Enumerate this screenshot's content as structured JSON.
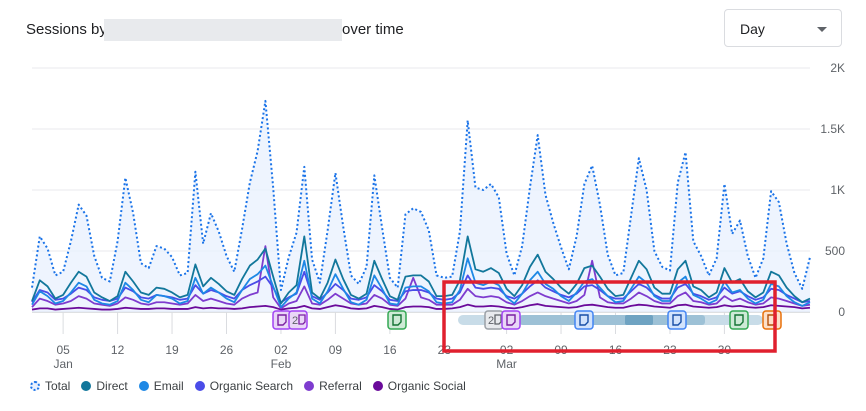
{
  "header": {
    "title_prefix": "Sessions by",
    "title_suffix": "over time",
    "period_select": {
      "value": "Day"
    }
  },
  "colors": {
    "total": "#1a73e8",
    "direct": "#12779b",
    "email": "#1e88e5",
    "organic_search": "#4a4ce8",
    "referral": "#7e3ccf",
    "organic_social": "#6a0a9a",
    "highlight_box": "#e0202e"
  },
  "annotations": [
    {
      "label": "",
      "icon": "note-icon",
      "color": "purple"
    },
    {
      "label": "2",
      "icon": "note-icon",
      "color": "purple"
    },
    {
      "label": "",
      "icon": "note-icon",
      "color": "green"
    },
    {
      "label": "2",
      "icon": "note-icon",
      "color": "gray"
    },
    {
      "label": "",
      "icon": "note-icon",
      "color": "purple"
    },
    {
      "label": "",
      "icon": "note-icon",
      "color": "blue"
    },
    {
      "label": "",
      "icon": "note-icon",
      "color": "blue"
    },
    {
      "label": "",
      "icon": "note-icon",
      "color": "green"
    },
    {
      "label": "",
      "icon": "note-icon",
      "color": "orange"
    }
  ],
  "chart_data": {
    "type": "line",
    "title": "",
    "x_start": "2024-01-01",
    "x_ticks": [
      {
        "label": "05",
        "sublabel": "Jan",
        "date": "2024-01-05"
      },
      {
        "label": "12",
        "sublabel": "",
        "date": "2024-01-12"
      },
      {
        "label": "19",
        "sublabel": "",
        "date": "2024-01-19"
      },
      {
        "label": "26",
        "sublabel": "",
        "date": "2024-01-26"
      },
      {
        "label": "02",
        "sublabel": "Feb",
        "date": "2024-02-02"
      },
      {
        "label": "09",
        "sublabel": "",
        "date": "2024-02-09"
      },
      {
        "label": "16",
        "sublabel": "",
        "date": "2024-02-16"
      },
      {
        "label": "23",
        "sublabel": "",
        "date": "2024-02-23"
      },
      {
        "label": "02",
        "sublabel": "Mar",
        "date": "2024-03-02"
      },
      {
        "label": "09",
        "sublabel": "",
        "date": "2024-03-09"
      },
      {
        "label": "16",
        "sublabel": "",
        "date": "2024-03-16"
      },
      {
        "label": "23",
        "sublabel": "",
        "date": "2024-03-23"
      },
      {
        "label": "30",
        "sublabel": "",
        "date": "2024-03-30"
      }
    ],
    "y_ticks": [
      "0",
      "500",
      "1K",
      "1.5K",
      "2K"
    ],
    "ylim": [
      0,
      2000
    ],
    "legend_position": "bottom-left",
    "series": [
      {
        "name": "Total",
        "style": "dotted-area",
        "values": [
          200,
          620,
          520,
          300,
          330,
          580,
          880,
          790,
          460,
          280,
          250,
          580,
          1100,
          810,
          400,
          360,
          540,
          520,
          450,
          300,
          320,
          1150,
          560,
          810,
          660,
          460,
          330,
          680,
          1060,
          1320,
          1730,
          1020,
          180,
          450,
          650,
          1190,
          430,
          240,
          670,
          1140,
          700,
          300,
          230,
          370,
          1120,
          690,
          280,
          200,
          800,
          850,
          820,
          670,
          300,
          280,
          290,
          660,
          1570,
          1020,
          1000,
          1050,
          940,
          480,
          300,
          540,
          1020,
          1450,
          960,
          730,
          530,
          350,
          620,
          1050,
          1200,
          880,
          470,
          300,
          320,
          790,
          1260,
          1000,
          500,
          370,
          340,
          1060,
          1310,
          580,
          460,
          300,
          440,
          1050,
          640,
          750,
          460,
          280,
          440,
          990,
          900,
          560,
          320,
          190,
          450
        ]
      },
      {
        "name": "Direct",
        "style": "line",
        "values": [
          90,
          260,
          210,
          110,
          140,
          240,
          330,
          290,
          160,
          120,
          90,
          130,
          330,
          250,
          160,
          140,
          200,
          190,
          160,
          120,
          140,
          390,
          210,
          280,
          230,
          170,
          140,
          270,
          380,
          430,
          520,
          290,
          70,
          160,
          220,
          620,
          160,
          110,
          240,
          430,
          270,
          140,
          110,
          150,
          420,
          270,
          130,
          100,
          290,
          300,
          300,
          250,
          130,
          130,
          140,
          260,
          620,
          350,
          330,
          360,
          320,
          190,
          130,
          220,
          370,
          470,
          330,
          270,
          200,
          150,
          230,
          360,
          380,
          290,
          190,
          130,
          140,
          280,
          420,
          350,
          200,
          150,
          150,
          350,
          420,
          210,
          180,
          120,
          160,
          360,
          240,
          270,
          170,
          120,
          160,
          330,
          300,
          200,
          130,
          80,
          110
        ]
      },
      {
        "name": "Email",
        "style": "line",
        "values": [
          60,
          170,
          130,
          70,
          90,
          160,
          240,
          210,
          100,
          70,
          60,
          90,
          240,
          180,
          100,
          80,
          140,
          130,
          110,
          70,
          90,
          280,
          150,
          200,
          160,
          110,
          80,
          180,
          270,
          310,
          380,
          210,
          40,
          110,
          160,
          420,
          110,
          70,
          170,
          310,
          190,
          80,
          60,
          100,
          300,
          190,
          70,
          60,
          200,
          210,
          210,
          170,
          80,
          70,
          80,
          180,
          440,
          240,
          220,
          250,
          220,
          120,
          70,
          150,
          260,
          330,
          230,
          190,
          130,
          90,
          160,
          250,
          270,
          200,
          130,
          80,
          90,
          190,
          290,
          240,
          130,
          90,
          90,
          240,
          290,
          140,
          110,
          70,
          100,
          250,
          160,
          180,
          110,
          70,
          100,
          230,
          210,
          130,
          80,
          50,
          80
        ]
      },
      {
        "name": "Organic Search",
        "style": "line",
        "values": [
          80,
          180,
          160,
          100,
          110,
          150,
          200,
          180,
          120,
          100,
          90,
          110,
          200,
          170,
          120,
          110,
          140,
          130,
          120,
          100,
          110,
          220,
          150,
          180,
          160,
          130,
          110,
          180,
          220,
          250,
          290,
          200,
          80,
          120,
          150,
          330,
          130,
          100,
          160,
          230,
          180,
          110,
          100,
          120,
          220,
          170,
          100,
          90,
          170,
          180,
          180,
          160,
          110,
          100,
          110,
          160,
          300,
          200,
          190,
          200,
          190,
          130,
          110,
          150,
          210,
          260,
          200,
          170,
          140,
          120,
          150,
          210,
          220,
          180,
          130,
          110,
          110,
          170,
          230,
          200,
          140,
          110,
          110,
          200,
          230,
          150,
          130,
          100,
          120,
          200,
          150,
          170,
          130,
          100,
          120,
          190,
          180,
          140,
          110,
          80,
          90
        ]
      },
      {
        "name": "Referral",
        "style": "line",
        "values": [
          40,
          110,
          90,
          60,
          70,
          90,
          130,
          110,
          70,
          60,
          50,
          70,
          120,
          100,
          70,
          60,
          80,
          80,
          70,
          60,
          70,
          140,
          90,
          110,
          90,
          70,
          60,
          110,
          140,
          160,
          540,
          120,
          30,
          70,
          90,
          210,
          70,
          60,
          100,
          150,
          110,
          70,
          60,
          70,
          140,
          110,
          60,
          50,
          110,
          280,
          120,
          100,
          60,
          60,
          60,
          100,
          190,
          130,
          120,
          130,
          120,
          80,
          60,
          90,
          130,
          160,
          130,
          110,
          90,
          70,
          90,
          140,
          420,
          120,
          80,
          70,
          70,
          110,
          160,
          130,
          90,
          70,
          70,
          130,
          160,
          90,
          80,
          60,
          70,
          130,
          90,
          110,
          80,
          60,
          70,
          120,
          110,
          90,
          70,
          50,
          60
        ]
      },
      {
        "name": "Organic Social",
        "style": "line",
        "values": [
          20,
          30,
          30,
          20,
          25,
          30,
          35,
          30,
          25,
          20,
          20,
          25,
          35,
          30,
          25,
          25,
          30,
          30,
          25,
          25,
          25,
          40,
          30,
          35,
          30,
          30,
          25,
          30,
          40,
          45,
          50,
          40,
          20,
          30,
          35,
          50,
          30,
          25,
          40,
          55,
          45,
          30,
          25,
          30,
          50,
          40,
          25,
          20,
          40,
          45,
          45,
          40,
          25,
          25,
          30,
          40,
          60,
          45,
          45,
          50,
          45,
          35,
          30,
          40,
          55,
          65,
          50,
          45,
          40,
          35,
          40,
          55,
          60,
          50,
          40,
          35,
          35,
          50,
          60,
          55,
          45,
          40,
          35,
          55,
          60,
          45,
          40,
          35,
          40,
          55,
          45,
          50,
          40,
          35,
          40,
          55,
          50,
          45,
          40,
          30,
          35
        ]
      }
    ]
  }
}
